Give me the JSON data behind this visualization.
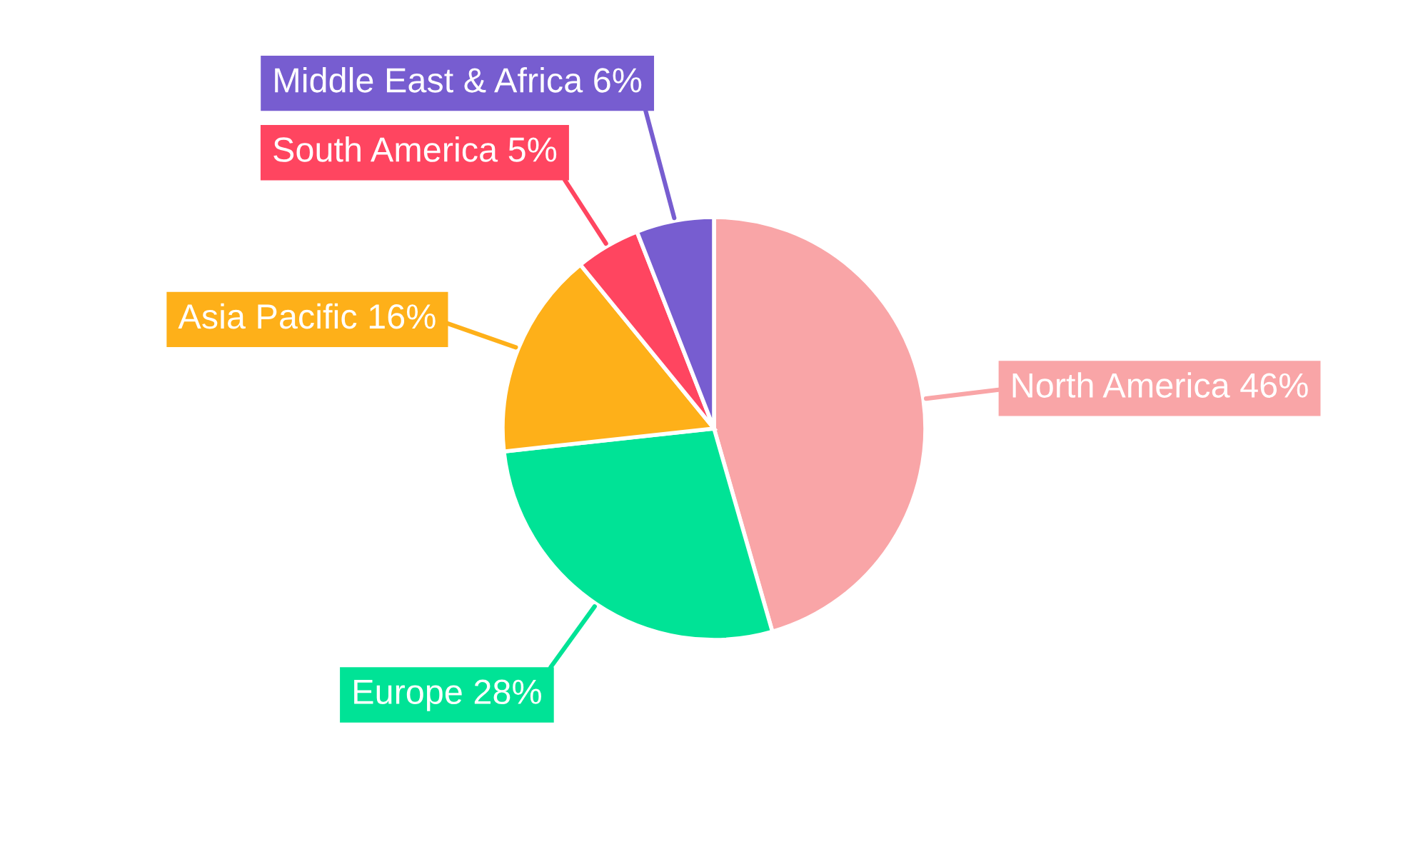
{
  "chart_data": {
    "type": "pie",
    "categories": [
      "North America",
      "Europe",
      "Asia Pacific",
      "South America",
      "Middle East & Africa"
    ],
    "values": [
      46,
      28,
      16,
      5,
      6
    ],
    "colors": [
      "#f9a5a7",
      "#00e396",
      "#feb019",
      "#ff4560",
      "#775dd0"
    ],
    "value_labels": [
      "46%",
      "28%",
      "16%",
      "5%",
      "6%"
    ]
  }
}
